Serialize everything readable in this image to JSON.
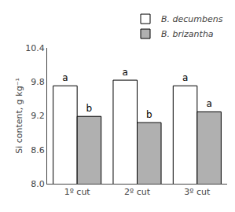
{
  "chart_data": {
    "type": "bar",
    "categories": [
      "1º cut",
      "2º cut",
      "3º cut"
    ],
    "series": [
      {
        "name": "B. decumbens",
        "color": "#ffffff",
        "values": [
          9.73,
          9.83,
          9.73
        ],
        "labels": [
          "a",
          "a",
          "a"
        ]
      },
      {
        "name": "B. brizantha",
        "color": "#b0b0b0",
        "values": [
          9.19,
          9.08,
          9.27
        ],
        "labels": [
          "b",
          "b",
          "a"
        ]
      }
    ],
    "ylabel": "Si content, g kg⁻¹",
    "ylim": [
      8.0,
      10.4
    ],
    "yticks": [
      {
        "value": 8.0,
        "label": "8.0"
      },
      8.6,
      9.2,
      9.8,
      10.4
    ],
    "grid": false,
    "legend": "upper right"
  }
}
